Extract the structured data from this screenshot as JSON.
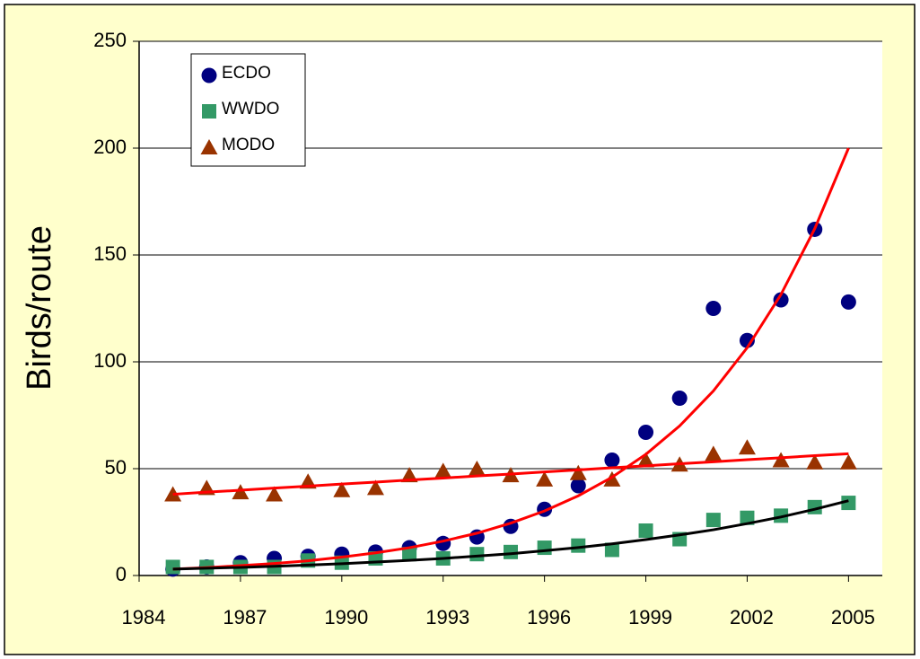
{
  "chart_data": {
    "type": "scatter",
    "y_label": "Birds/route",
    "x": [
      1985,
      1986,
      1987,
      1988,
      1989,
      1990,
      1991,
      1992,
      1993,
      1994,
      1995,
      1996,
      1997,
      1998,
      1999,
      2000,
      2001,
      2002,
      2003,
      2004,
      2005
    ],
    "series": [
      {
        "name": "ECDO",
        "color": "#000080",
        "marker": "circle",
        "values": [
          3,
          4,
          6,
          8,
          9,
          10,
          11,
          13,
          15,
          18,
          23,
          31,
          42,
          54,
          67,
          83,
          125,
          110,
          129,
          162,
          128
        ]
      },
      {
        "name": "WWDO",
        "color": "#339966",
        "marker": "square",
        "values": [
          4,
          4,
          4,
          4,
          7,
          6,
          8,
          10,
          8,
          10,
          11,
          13,
          14,
          12,
          21,
          17,
          26,
          27,
          28,
          32,
          34
        ]
      },
      {
        "name": "MODO",
        "color": "#993300",
        "marker": "triangle",
        "values": [
          38,
          41,
          39,
          38,
          44,
          40,
          41,
          47,
          49,
          50,
          47,
          45,
          48,
          45,
          54,
          52,
          57,
          60,
          54,
          53,
          53
        ]
      }
    ],
    "trendlines": [
      {
        "color": "#ff0000",
        "values": [
          3,
          3.7,
          4.6,
          5.6,
          6.9,
          8.6,
          10.6,
          13,
          16.1,
          19.8,
          24.5,
          30.2,
          37.3,
          46,
          56.7,
          70,
          86.4,
          106.6,
          131.5,
          162.3,
          200
        ]
      },
      {
        "color": "#000000",
        "values": [
          3,
          3.4,
          3.8,
          4.3,
          4.9,
          5.5,
          6.3,
          7.1,
          8,
          9.1,
          10.2,
          11.6,
          13.1,
          14.8,
          16.8,
          19,
          21.4,
          24.3,
          27.4,
          31,
          35
        ]
      },
      {
        "color": "#ff0000",
        "values": [
          38,
          39,
          39.9,
          40.9,
          41.8,
          42.8,
          43.7,
          44.7,
          45.6,
          46.6,
          47.5,
          48.5,
          49.4,
          50.4,
          51.3,
          52.3,
          53.2,
          54.2,
          55.1,
          56.1,
          57
        ]
      }
    ],
    "xlim": [
      1984,
      2006
    ],
    "xticks": [
      1984,
      1987,
      1990,
      1993,
      1996,
      1999,
      2002,
      2005
    ],
    "ylim": [
      0,
      250
    ],
    "yticks": [
      0,
      50,
      100,
      150,
      200,
      250
    ],
    "grid": true,
    "legend": "upper left"
  }
}
